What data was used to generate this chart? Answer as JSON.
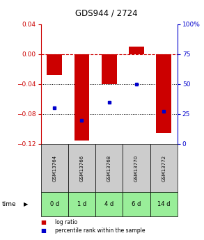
{
  "title": "GDS944 / 2724",
  "categories": [
    "GSM13764",
    "GSM13766",
    "GSM13768",
    "GSM13770",
    "GSM13772"
  ],
  "time_labels": [
    "0 d",
    "1 d",
    "4 d",
    "6 d",
    "14 d"
  ],
  "log_ratio": [
    -0.028,
    -0.115,
    -0.04,
    0.01,
    -0.105
  ],
  "percentile": [
    30,
    20,
    35,
    50,
    27
  ],
  "ylim_left": [
    -0.12,
    0.04
  ],
  "ylim_right": [
    0,
    100
  ],
  "bar_color": "#cc0000",
  "dot_color": "#0000cc",
  "bar_width": 0.55,
  "grid_color": "#000000",
  "zero_line_color": "#cc0000",
  "background_color": "#ffffff",
  "gsm_box_color": "#cccccc",
  "time_box_color": "#99ee99",
  "title_color": "#000000",
  "left_tick_color": "#cc0000",
  "right_tick_color": "#0000cc",
  "legend_red_label": "log ratio",
  "legend_blue_label": "percentile rank within the sample"
}
